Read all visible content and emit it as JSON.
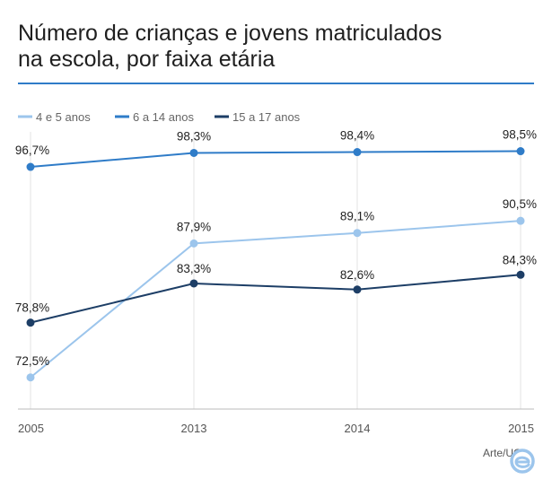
{
  "chart_data": {
    "type": "line",
    "title_lines": [
      "Número de crianças e jovens matriculados",
      "na escola, por faixa etária"
    ],
    "categories": [
      "2005",
      "2013",
      "2014",
      "2015"
    ],
    "ylim": [
      70,
      100
    ],
    "grid": "vertical",
    "legend_position": "top-left",
    "series": [
      {
        "name": "4 e 5 anos",
        "color": "#9cc5ec",
        "values": [
          72.5,
          87.9,
          89.1,
          90.5
        ],
        "labels": [
          "72,5%",
          "87,9%",
          "89,1%",
          "90,5%"
        ]
      },
      {
        "name": "6 a 14 anos",
        "color": "#2f7cc8",
        "values": [
          96.7,
          98.3,
          98.4,
          98.5
        ],
        "labels": [
          "96,7%",
          "98,3%",
          "98,4%",
          "98,5%"
        ]
      },
      {
        "name": "15 a 17 anos",
        "color": "#1d3e66",
        "values": [
          78.8,
          83.3,
          82.6,
          84.3
        ],
        "labels": [
          "78,8%",
          "83,3%",
          "82,6%",
          "84,3%"
        ]
      }
    ]
  },
  "credit": "Arte/UOL",
  "colors": {
    "rule": "#2f7cc8",
    "grid": "#e3e3e3",
    "axis": "#bbbbbb"
  }
}
